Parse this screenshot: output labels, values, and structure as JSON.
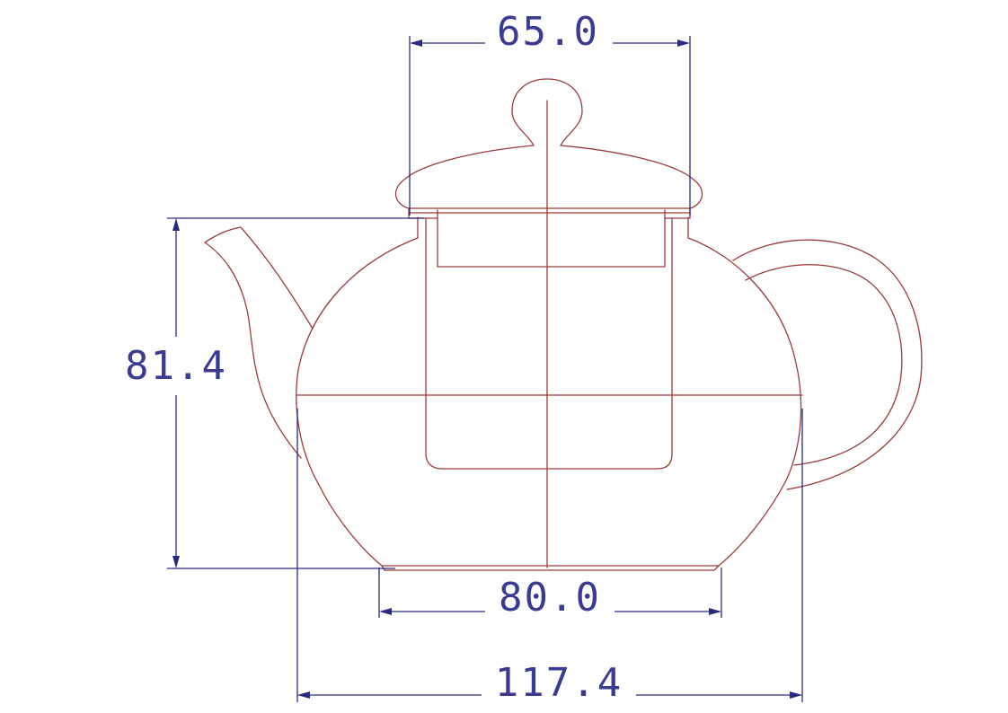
{
  "dimensions": {
    "lid_width": "65.0",
    "height": "81.4",
    "base_width": "80.0",
    "overall_width": "117.4"
  },
  "colors": {
    "outline": "#9a3b3b",
    "dimension": "#2a2a80",
    "background": "#ffffff"
  }
}
